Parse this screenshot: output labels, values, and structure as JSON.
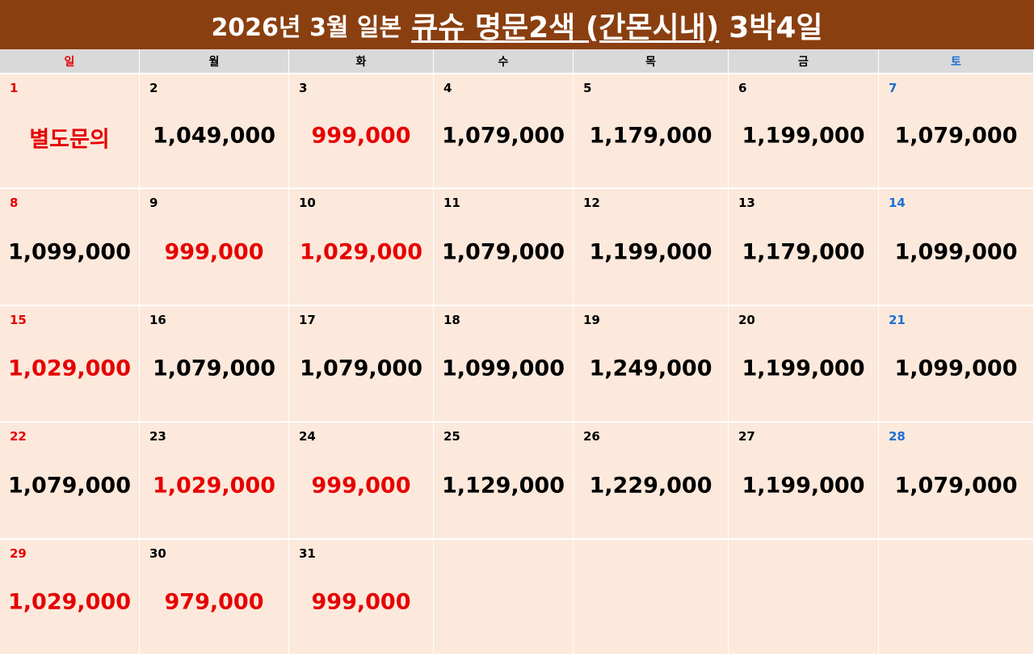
{
  "header": {
    "part1": "2026년 3월 일본",
    "part2": "큐슈 명문2색 (간몬시내)",
    "part3": "3박4일"
  },
  "colors": {
    "header_bg": "#8a3f10",
    "cell_bg": "#fce9dc",
    "dow_bg": "#d9d9d9",
    "sunday": "#e60000",
    "saturday": "#1f6fd1",
    "highlight_price": "#e60000",
    "normal_price": "#000000"
  },
  "weekdays": [
    "일",
    "월",
    "화",
    "수",
    "목",
    "금",
    "토"
  ],
  "days": [
    {
      "day": "1",
      "price": "별도문의",
      "red": true
    },
    {
      "day": "2",
      "price": "1,049,000",
      "red": false
    },
    {
      "day": "3",
      "price": "999,000",
      "red": true
    },
    {
      "day": "4",
      "price": "1,079,000",
      "red": false
    },
    {
      "day": "5",
      "price": "1,179,000",
      "red": false
    },
    {
      "day": "6",
      "price": "1,199,000",
      "red": false
    },
    {
      "day": "7",
      "price": "1,079,000",
      "red": false
    },
    {
      "day": "8",
      "price": "1,099,000",
      "red": false
    },
    {
      "day": "9",
      "price": "999,000",
      "red": true
    },
    {
      "day": "10",
      "price": "1,029,000",
      "red": true
    },
    {
      "day": "11",
      "price": "1,079,000",
      "red": false
    },
    {
      "day": "12",
      "price": "1,199,000",
      "red": false
    },
    {
      "day": "13",
      "price": "1,179,000",
      "red": false
    },
    {
      "day": "14",
      "price": "1,099,000",
      "red": false
    },
    {
      "day": "15",
      "price": "1,029,000",
      "red": true
    },
    {
      "day": "16",
      "price": "1,079,000",
      "red": false
    },
    {
      "day": "17",
      "price": "1,079,000",
      "red": false
    },
    {
      "day": "18",
      "price": "1,099,000",
      "red": false
    },
    {
      "day": "19",
      "price": "1,249,000",
      "red": false
    },
    {
      "day": "20",
      "price": "1,199,000",
      "red": false
    },
    {
      "day": "21",
      "price": "1,099,000",
      "red": false
    },
    {
      "day": "22",
      "price": "1,079,000",
      "red": false
    },
    {
      "day": "23",
      "price": "1,029,000",
      "red": true
    },
    {
      "day": "24",
      "price": "999,000",
      "red": true
    },
    {
      "day": "25",
      "price": "1,129,000",
      "red": false
    },
    {
      "day": "26",
      "price": "1,229,000",
      "red": false
    },
    {
      "day": "27",
      "price": "1,199,000",
      "red": false
    },
    {
      "day": "28",
      "price": "1,079,000",
      "red": false
    },
    {
      "day": "29",
      "price": "1,029,000",
      "red": true
    },
    {
      "day": "30",
      "price": "979,000",
      "red": true
    },
    {
      "day": "31",
      "price": "999,000",
      "red": true
    }
  ]
}
